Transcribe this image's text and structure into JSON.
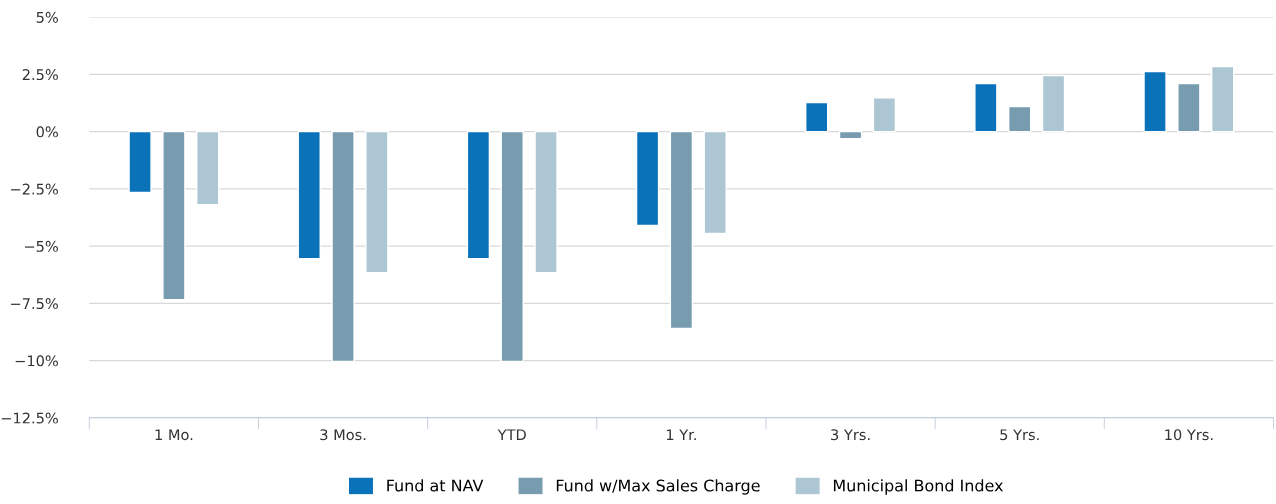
{
  "chart_data": {
    "type": "bar",
    "categories": [
      "1 Mo.",
      "3 Mos.",
      "YTD",
      "1 Yr.",
      "3 Yrs.",
      "5 Yrs.",
      "10 Yrs."
    ],
    "series": [
      {
        "name": "Fund at NAV",
        "color": "#0a72b8",
        "values": [
          -2.66,
          -5.55,
          -5.55,
          -4.1,
          1.27,
          2.1,
          2.62
        ]
      },
      {
        "name": "Fund w/Max Sales Charge",
        "color": "#779cb0",
        "values": [
          -7.34,
          -10.04,
          -10.04,
          -8.6,
          -0.31,
          1.09,
          2.1
        ]
      },
      {
        "name": "Municipal Bond Index",
        "color": "#adc6d3",
        "values": [
          -3.19,
          -6.16,
          -6.16,
          -4.45,
          1.48,
          2.45,
          2.84
        ]
      }
    ],
    "ylim": [
      -12.5,
      5
    ],
    "yticks": [
      {
        "value": -12.5,
        "label": "−12.5%"
      },
      {
        "value": -10,
        "label": "−10%"
      },
      {
        "value": -7.5,
        "label": "−7.5%"
      },
      {
        "value": -5,
        "label": "−5%"
      },
      {
        "value": -2.5,
        "label": "−2.5%"
      },
      {
        "value": 0,
        "label": "0%"
      },
      {
        "value": 2.5,
        "label": "2.5%"
      },
      {
        "value": 5,
        "label": "5%"
      }
    ],
    "grid": "y",
    "legend": "bottom"
  }
}
